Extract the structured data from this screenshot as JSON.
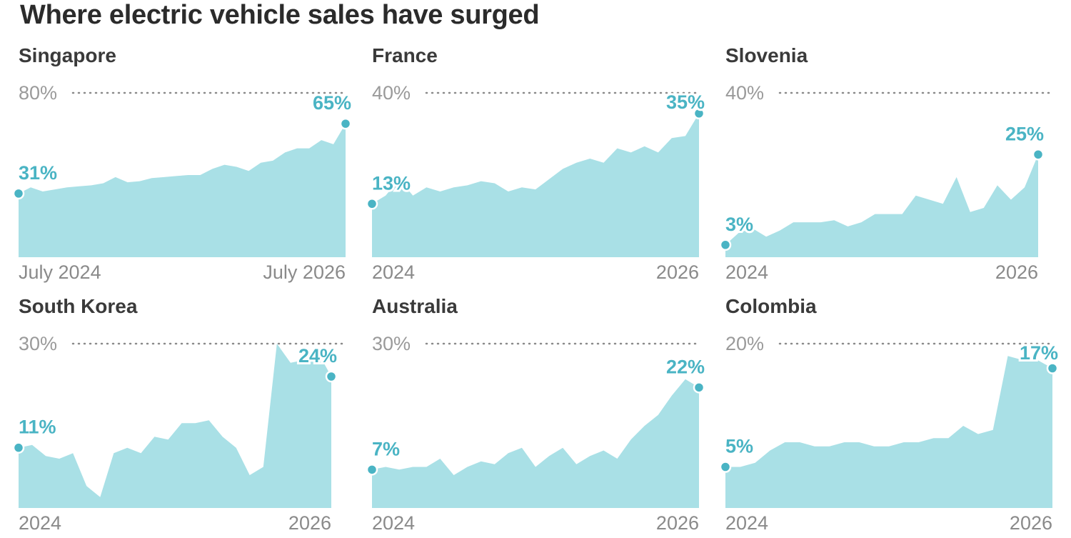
{
  "title": "Where electric vehicle sales have surged",
  "colors": {
    "area": "#a9e0e6",
    "accent": "#4ab4c4",
    "grid": "#8a8a8a"
  },
  "chart_data": [
    {
      "type": "area",
      "title": "Singapore",
      "ylim": [
        0,
        80
      ],
      "ymax_label": "80%",
      "x_start_label": "July 2024",
      "x_end_label": "July 2026",
      "start_label": "31%",
      "end_label": "65%",
      "values": [
        31,
        34,
        32,
        33,
        34,
        34.5,
        35,
        36,
        39,
        36.5,
        37,
        38.5,
        39,
        39.5,
        40,
        40,
        43,
        45,
        44,
        42,
        46,
        47,
        51,
        53,
        53,
        57,
        55,
        65
      ]
    },
    {
      "type": "area",
      "title": "France",
      "ylim": [
        0,
        40
      ],
      "ymax_label": "40%",
      "x_start_label": "2024",
      "x_end_label": "2026",
      "start_label": "13%",
      "end_label": "35%",
      "values": [
        13,
        15,
        19,
        15,
        17,
        16,
        17,
        17.5,
        18.5,
        18,
        16,
        17,
        16.5,
        19,
        21.5,
        23,
        24,
        23,
        26.5,
        25.5,
        27,
        25.5,
        29,
        29.5,
        35
      ]
    },
    {
      "type": "area",
      "title": "Slovenia",
      "ylim": [
        0,
        40
      ],
      "ymax_label": "40%",
      "x_start_label": "2024",
      "x_end_label": "2026",
      "start_label": "3%",
      "end_label": "25%",
      "values": [
        3,
        6,
        7,
        5,
        6.5,
        8.5,
        8.5,
        8.5,
        9,
        7.5,
        8.5,
        10.5,
        10.5,
        10.5,
        15,
        14,
        13,
        19.5,
        11,
        12,
        17.5,
        14,
        17,
        25
      ]
    },
    {
      "type": "area",
      "title": "South Korea",
      "ylim": [
        0,
        30
      ],
      "ymax_label": "30%",
      "x_start_label": "2024",
      "x_end_label": "2026",
      "start_label": "11%",
      "end_label": "24%",
      "values": [
        11,
        11.5,
        9.5,
        9,
        10,
        4,
        2,
        10,
        11,
        10,
        13,
        12.5,
        15.5,
        15.5,
        16,
        13,
        11,
        6,
        7.5,
        30,
        26.5,
        27,
        28.5,
        24
      ]
    },
    {
      "type": "area",
      "title": "Australia",
      "ylim": [
        0,
        30
      ],
      "ymax_label": "30%",
      "x_start_label": "2024",
      "x_end_label": "2026",
      "start_label": "7%",
      "end_label": "22%",
      "values": [
        7,
        7.5,
        7,
        7.5,
        7.5,
        9,
        6,
        7.5,
        8.5,
        8,
        10,
        11,
        7.5,
        9.5,
        11,
        8,
        9.5,
        10.5,
        9,
        12.5,
        15,
        17,
        20.5,
        23.5,
        22
      ]
    },
    {
      "type": "area",
      "title": "Colombia",
      "ylim": [
        0,
        20
      ],
      "ymax_label": "20%",
      "x_start_label": "2024",
      "x_end_label": "2026",
      "start_label": "5%",
      "end_label": "17%",
      "values": [
        5,
        5,
        5.5,
        7,
        8,
        8,
        7.5,
        7.5,
        8,
        8,
        7.5,
        7.5,
        8,
        8,
        8.5,
        8.5,
        10,
        9,
        9.5,
        18.5,
        18,
        18,
        17
      ]
    }
  ]
}
